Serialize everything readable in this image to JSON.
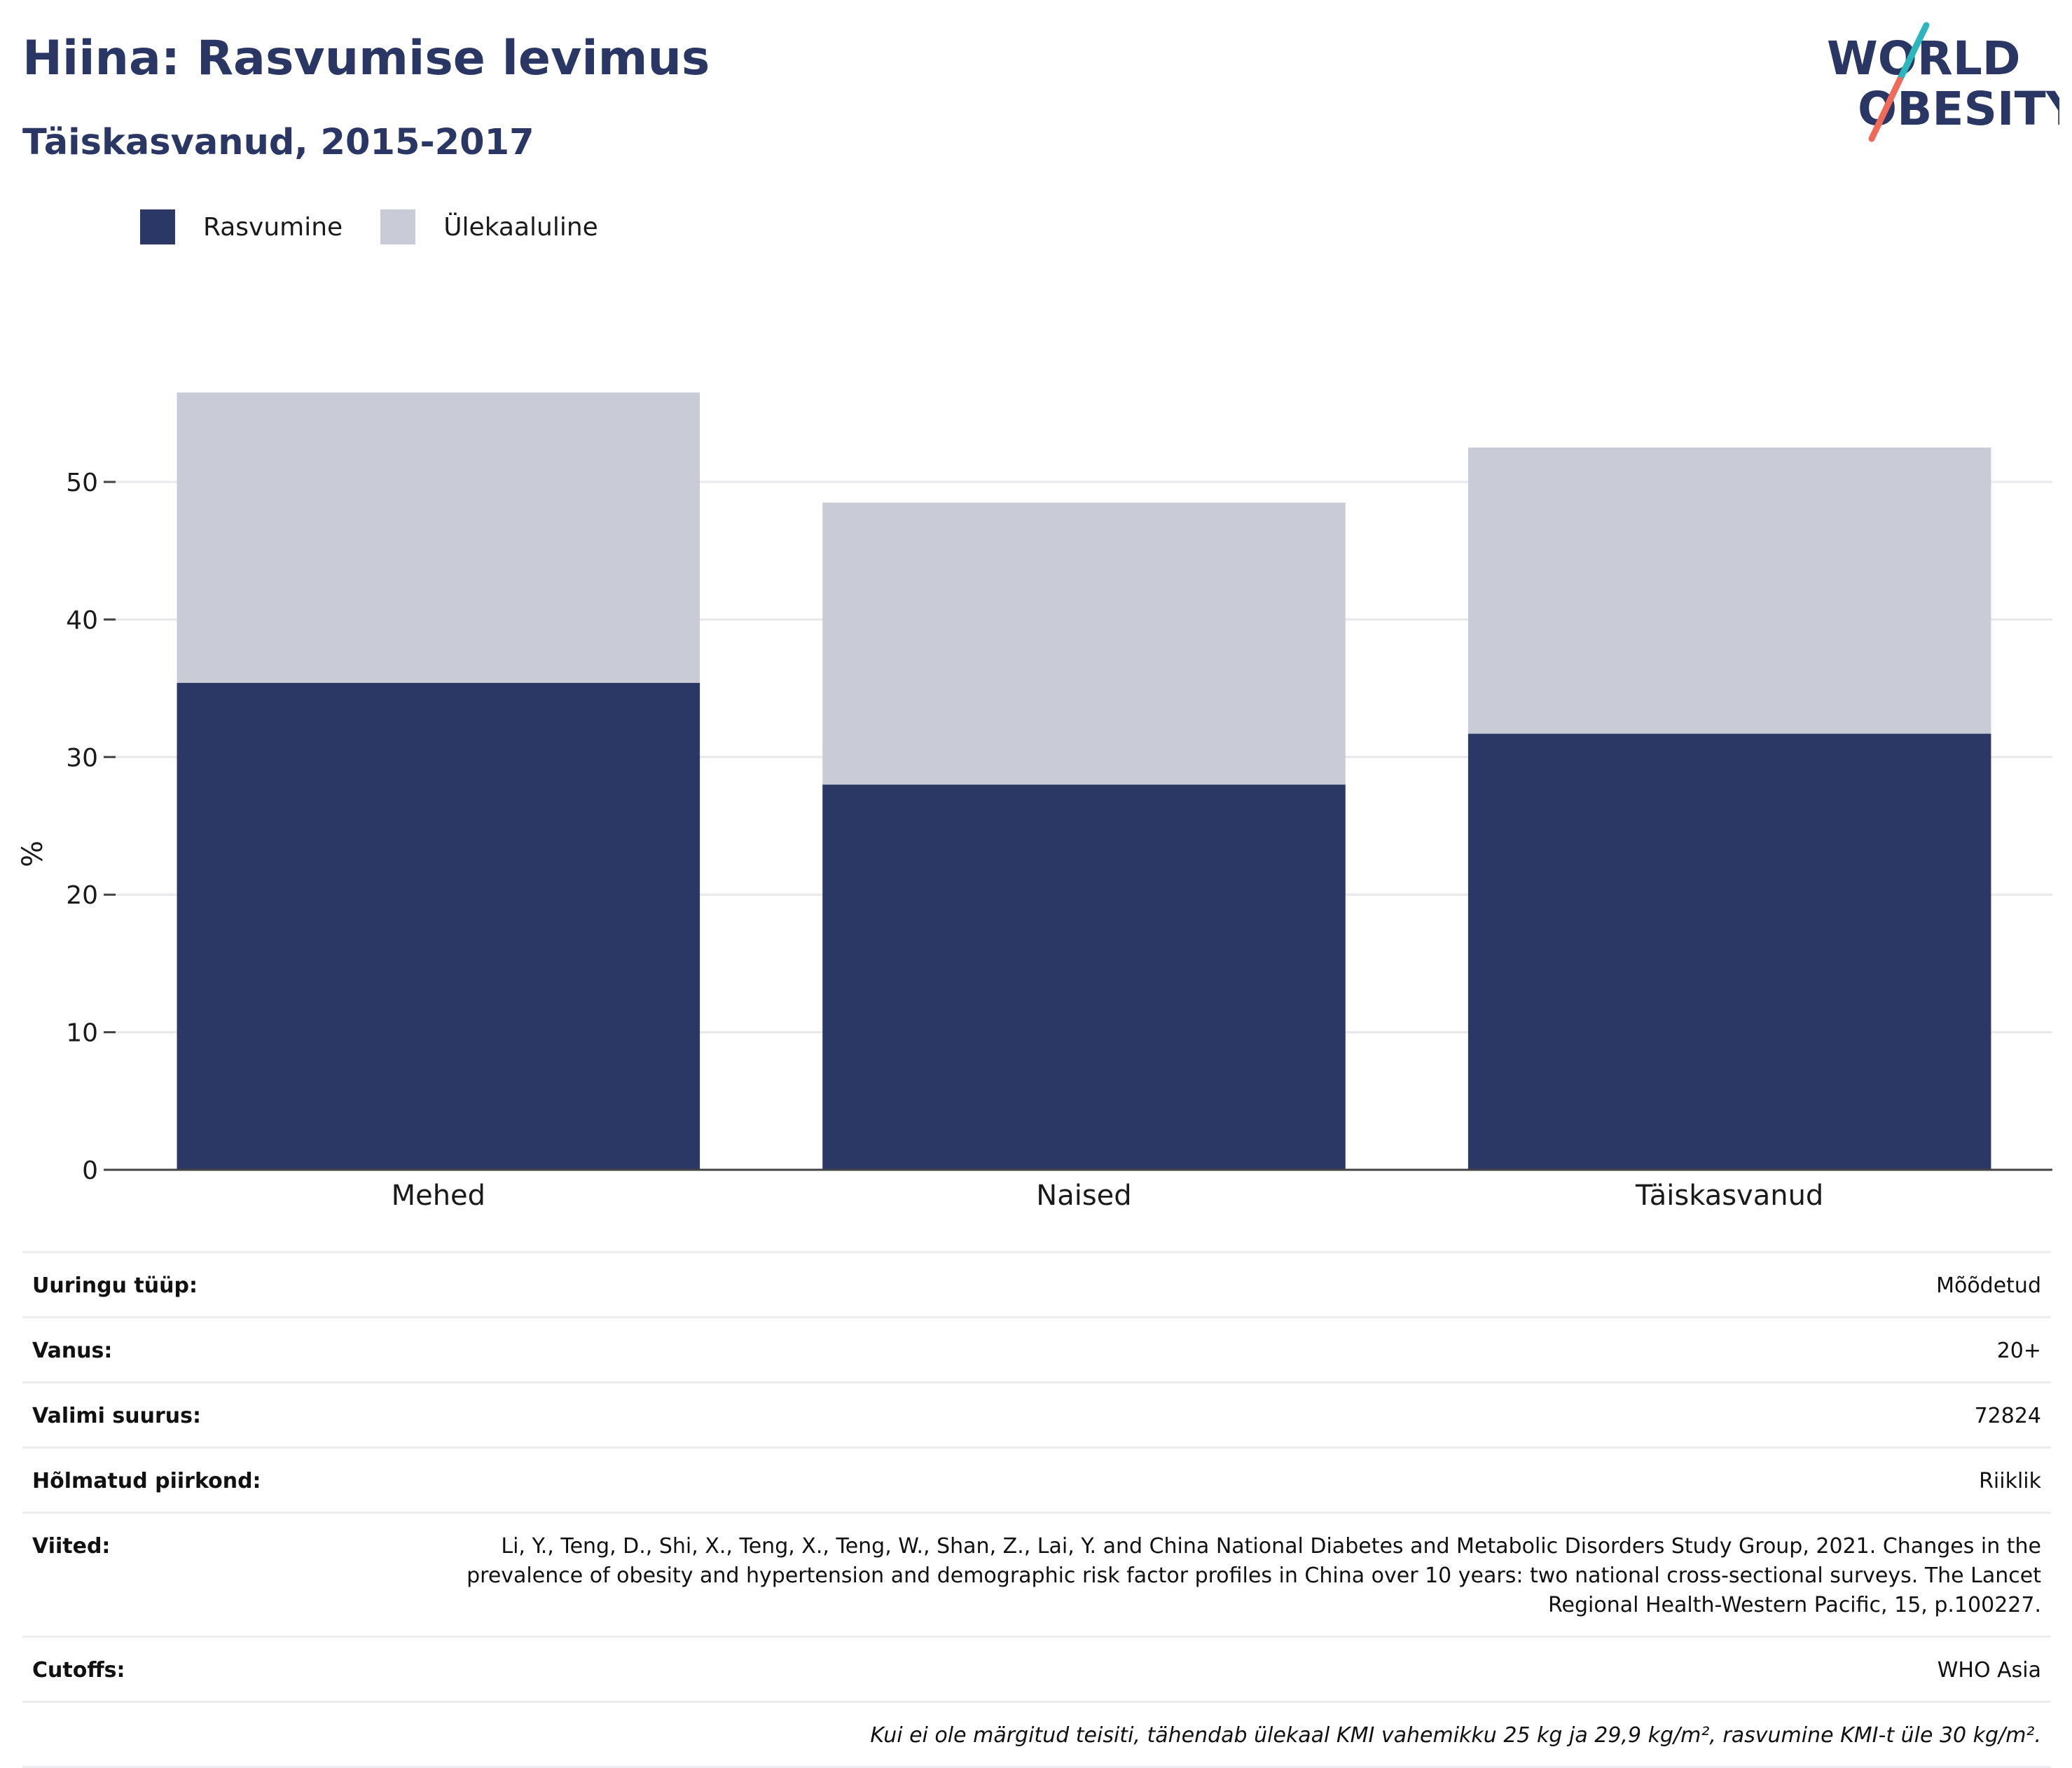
{
  "header": {
    "title": "Hiina: Rasvumise levimus",
    "subtitle": "Täiskasvanud, 2015-2017"
  },
  "logo": {
    "line1": "WORLD",
    "line2": "OBESITY",
    "colors": {
      "text": "#2a3764",
      "slash_teal": "#2bb7bd",
      "slash_coral": "#f06a5a"
    }
  },
  "legend": [
    {
      "label": "Rasvumine",
      "color": "#2b3764"
    },
    {
      "label": "Ülekaaluline",
      "color": "#c9cbd6"
    }
  ],
  "chart_data": {
    "type": "bar",
    "stacked": true,
    "categories": [
      "Mehed",
      "Naised",
      "Täiskasvanud"
    ],
    "series": [
      {
        "name": "Rasvumine",
        "color": "#2b3764",
        "values": [
          35.4,
          28.0,
          31.7
        ]
      },
      {
        "name": "Ülekaaluline",
        "color": "#c9cbd6",
        "values": [
          21.1,
          20.5,
          20.8
        ]
      }
    ],
    "ylabel": "%",
    "ylim": [
      0,
      60
    ],
    "yticks": [
      0,
      10,
      20,
      30,
      40,
      50
    ],
    "grid": true,
    "legend_position": "top-left"
  },
  "info_table": {
    "rows": [
      {
        "label": "Uuringu tüüp:",
        "value": "Mõõdetud"
      },
      {
        "label": "Vanus:",
        "value": "20+"
      },
      {
        "label": "Valimi suurus:",
        "value": "72824"
      },
      {
        "label": "Hõlmatud piirkond:",
        "value": "Riiklik"
      },
      {
        "label": "Viited:",
        "value": "Li, Y., Teng, D., Shi, X., Teng, X., Teng, W., Shan, Z., Lai, Y. and China National Diabetes and Metabolic Disorders Study Group, 2021. Changes in the prevalence of obesity and hypertension and demographic risk factor profiles in China over 10 years: two national cross-sectional surveys. The Lancet Regional Health-Western Pacific, 15, p.100227."
      },
      {
        "label": "Cutoffs:",
        "value": "WHO Asia"
      }
    ],
    "footnote": "Kui ei ole märgitud teisiti, tähendab ülekaal KMI vahemikku 25 kg ja 29,9 kg/m², rasvumine KMI-t üle 30 kg/m²."
  }
}
